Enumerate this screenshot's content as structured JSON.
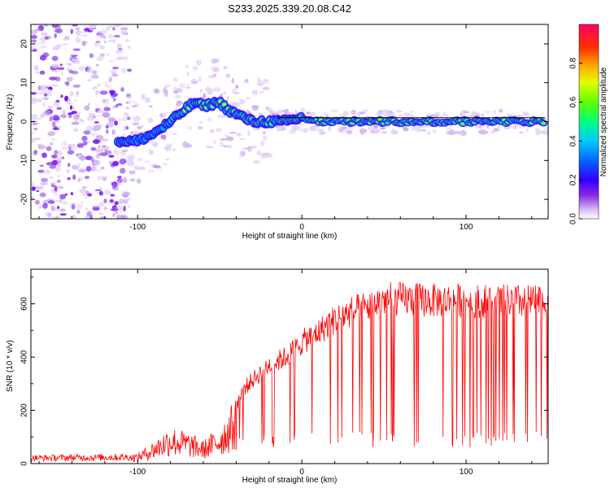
{
  "title": "S233.2025.339.20.08.C42",
  "chart_data": [
    {
      "type": "heatmap",
      "name": "spectrogram",
      "xlabel": "Height of straight line (km)",
      "ylabel": "Frequency (Hz)",
      "xlim": [
        -165,
        150
      ],
      "ylim": [
        -25,
        25
      ],
      "x_ticks": [
        -100,
        0,
        100
      ],
      "y_ticks": [
        -20,
        -10,
        0,
        10,
        20
      ],
      "colorbar": {
        "label": "Normalized spectral amplitude",
        "range": [
          0,
          1
        ],
        "ticks": [
          0.0,
          0.2,
          0.4,
          0.6,
          0.8
        ],
        "tick_labels": [
          "0.0",
          "0.2",
          "0.4",
          "0.6",
          "0.8"
        ],
        "colormap": [
          "#ffffff",
          "#e0c8f5",
          "#8a2be2",
          "#5500ff",
          "#0000ff",
          "#00ccff",
          "#00ff80",
          "#80ff00",
          "#ffff00",
          "#ffa000",
          "#ff2000",
          "#ff0060"
        ]
      },
      "signal_track": {
        "description_x": [
          -110,
          -100,
          -90,
          -80,
          -70,
          -65,
          -60,
          -50,
          -45,
          -40,
          -30,
          -20,
          -10,
          0,
          10,
          20,
          50,
          100,
          148
        ],
        "frequency_hz": [
          -5,
          -5,
          -3,
          0,
          3.5,
          5,
          4,
          5,
          3,
          2,
          0,
          0,
          0,
          1,
          0,
          0,
          0,
          0,
          0
        ],
        "reference_line_hz": 1
      }
    },
    {
      "type": "line",
      "name": "snr",
      "xlabel": "Height of straight line (km)",
      "ylabel": "SNR (10 * v/v)",
      "xlim": [
        -165,
        150
      ],
      "ylim": [
        0,
        730
      ],
      "x_ticks": [
        -100,
        0,
        100
      ],
      "y_ticks": [
        0,
        200,
        400,
        600
      ],
      "color": "#ff0000",
      "envelope_x": [
        -165,
        -100,
        -90,
        -80,
        -70,
        -60,
        -50,
        -40,
        -35,
        -30,
        -20,
        -10,
        0,
        10,
        20,
        30,
        40,
        50,
        60,
        80,
        100,
        120,
        148
      ],
      "envelope_y": [
        30,
        35,
        80,
        130,
        110,
        80,
        130,
        230,
        300,
        330,
        390,
        420,
        480,
        520,
        570,
        600,
        620,
        650,
        650,
        645,
        645,
        640,
        640
      ]
    }
  ]
}
